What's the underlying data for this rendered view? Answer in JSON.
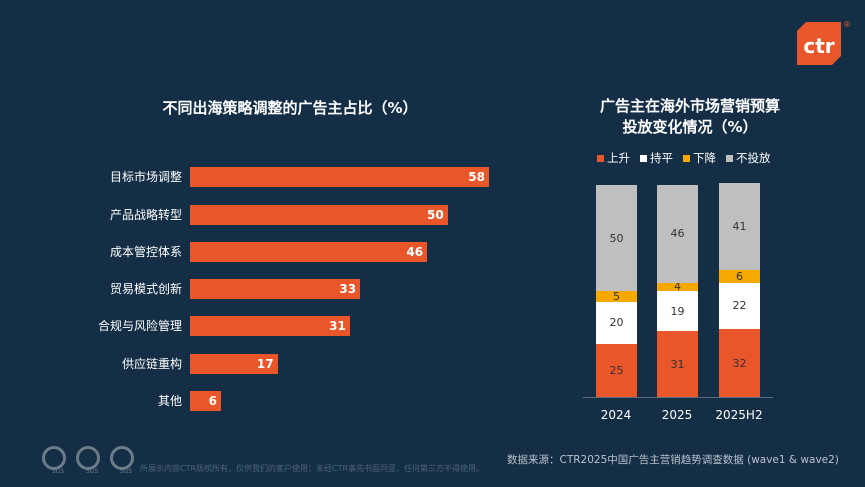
{
  "logo": {
    "text": "ctr",
    "mark": "®",
    "color": "#e8562a"
  },
  "chart_data": [
    {
      "type": "bar",
      "orientation": "horizontal",
      "title": "不同出海策略调整的广告主占比（%）",
      "categories": [
        "目标市场调整",
        "产品战略转型",
        "成本管控体系",
        "贸易模式创新",
        "合规与风险管理",
        "供应链重构",
        "其他"
      ],
      "values": [
        58,
        50,
        46,
        33,
        31,
        17,
        6
      ],
      "color": "#e8562a",
      "xlim": [
        0,
        100
      ],
      "grid": false
    },
    {
      "type": "bar",
      "stacked": true,
      "title": [
        "广告主在海外市场营销预算",
        "投放变化情况（%）"
      ],
      "categories": [
        "2024",
        "2025",
        "2025H2"
      ],
      "series": [
        {
          "name": "上升",
          "values": [
            25,
            31,
            32
          ],
          "color": "#e8562a"
        },
        {
          "name": "持平",
          "values": [
            20,
            19,
            22
          ],
          "color": "#ffffff"
        },
        {
          "name": "下降",
          "values": [
            5,
            4,
            6
          ],
          "color": "#f5a800"
        },
        {
          "name": "不投放",
          "values": [
            50,
            46,
            41
          ],
          "color": "#bfbfbf"
        }
      ],
      "legend": "top",
      "ylim": [
        0,
        100
      ],
      "grid": false
    }
  ],
  "footer": {
    "source": "数据来源：CTR2025中国广告主营销趋势调查数据 (wave1 & wave2)",
    "copyright": "所展示内容CTR版权所有，仅供我们的客户使用；未经CTR事先书面同意，任何第三方不得使用。",
    "badges": [
      "SGS",
      "SGS",
      "SGS"
    ]
  }
}
